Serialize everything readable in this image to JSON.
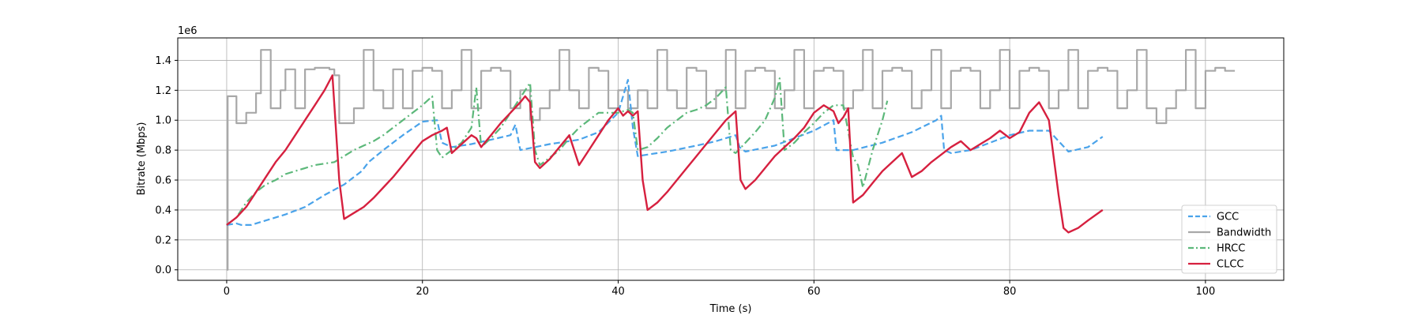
{
  "chart_data": {
    "type": "line",
    "title": "",
    "xlabel": "Time (s)",
    "ylabel": "Bitrate (Mbps)",
    "y_offset_label": "1e6",
    "xlim": [
      -5,
      108
    ],
    "ylim": [
      -0.07,
      1.55
    ],
    "xticks": [
      0,
      20,
      40,
      60,
      80,
      100
    ],
    "yticks": [
      0.0,
      0.2,
      0.4,
      0.6,
      0.8,
      1.0,
      1.2,
      1.4
    ],
    "ytick_labels": [
      "0.0",
      "0.2",
      "0.4",
      "0.6",
      "0.8",
      "1.0",
      "1.2",
      "1.4"
    ],
    "grid": true,
    "legend_position": "lower-right",
    "series": [
      {
        "name": "GCC",
        "color": "#4aa3ea",
        "style": "dashed",
        "x": [
          0,
          1,
          1.5,
          2.5,
          4,
          6,
          8,
          10,
          12,
          13,
          13.8,
          14.5,
          16,
          18,
          20,
          21.5,
          22,
          23,
          25,
          27,
          29,
          29.5,
          30,
          33,
          36,
          38,
          40,
          41,
          41.5,
          42,
          45,
          48,
          50,
          52,
          52.4,
          53,
          56,
          58,
          60,
          62,
          62.3,
          64,
          67,
          70,
          72.5,
          73,
          73.3,
          74,
          76,
          78,
          80,
          82,
          84,
          86,
          88,
          89.5
        ],
        "values": [
          0.3,
          0.31,
          0.3,
          0.3,
          0.33,
          0.37,
          0.42,
          0.5,
          0.57,
          0.62,
          0.66,
          0.72,
          0.8,
          0.9,
          0.99,
          1.0,
          0.85,
          0.82,
          0.84,
          0.87,
          0.9,
          0.97,
          0.8,
          0.84,
          0.87,
          0.92,
          1.05,
          1.27,
          0.95,
          0.76,
          0.79,
          0.83,
          0.86,
          0.9,
          0.82,
          0.79,
          0.83,
          0.88,
          0.93,
          1.0,
          0.8,
          0.8,
          0.85,
          0.92,
          1.0,
          1.03,
          0.8,
          0.78,
          0.8,
          0.85,
          0.9,
          0.93,
          0.93,
          0.79,
          0.82,
          0.89
        ]
      },
      {
        "name": "Bandwidth",
        "color": "#a8a8a8",
        "style": "step",
        "x": [
          0,
          0.1,
          1,
          2,
          3,
          3.5,
          4.5,
          5.5,
          6,
          7,
          8,
          9,
          10.5,
          11,
          11.5,
          13,
          14,
          15,
          16,
          17,
          18,
          19,
          20,
          21,
          22,
          23,
          24,
          25,
          26,
          27,
          28,
          29,
          30,
          31,
          32,
          33,
          34,
          35,
          36,
          37,
          38,
          39,
          40,
          41,
          42,
          43,
          44,
          45,
          46,
          47,
          48,
          49,
          50,
          51,
          52,
          53,
          54,
          55,
          56,
          57,
          58,
          59,
          60,
          61,
          62,
          63,
          64,
          65,
          66,
          67,
          68,
          69,
          70,
          71,
          72,
          73,
          74,
          75,
          76,
          77,
          78,
          79,
          80,
          81,
          82,
          83,
          84,
          85,
          86,
          87,
          88,
          89,
          90,
          91,
          92,
          93,
          94,
          95,
          96,
          97,
          98,
          99,
          100,
          101,
          102,
          103
        ],
        "values": [
          0.0,
          1.16,
          0.98,
          1.05,
          1.18,
          1.47,
          1.08,
          1.2,
          1.34,
          1.08,
          1.34,
          1.35,
          1.34,
          1.3,
          0.98,
          1.08,
          1.47,
          1.2,
          1.08,
          1.34,
          1.08,
          1.33,
          1.35,
          1.33,
          1.08,
          1.2,
          1.47,
          1.08,
          1.33,
          1.35,
          1.33,
          1.08,
          1.2,
          1.0,
          1.08,
          1.2,
          1.47,
          1.2,
          1.08,
          1.35,
          1.33,
          1.08,
          1.2,
          1.08,
          1.2,
          1.08,
          1.47,
          1.2,
          1.08,
          1.35,
          1.33,
          1.08,
          1.2,
          1.47,
          1.08,
          1.33,
          1.35,
          1.33,
          1.08,
          1.2,
          1.47,
          1.08,
          1.33,
          1.35,
          1.33,
          1.08,
          1.2,
          1.47,
          1.08,
          1.33,
          1.35,
          1.33,
          1.08,
          1.2,
          1.47,
          1.08,
          1.33,
          1.35,
          1.33,
          1.08,
          1.2,
          1.47,
          1.08,
          1.33,
          1.35,
          1.33,
          1.08,
          1.2,
          1.47,
          1.08,
          1.33,
          1.35,
          1.33,
          1.08,
          1.2,
          1.47,
          1.08,
          0.98,
          1.08,
          1.2,
          1.47,
          1.08,
          1.33,
          1.35,
          1.33,
          1.33
        ]
      },
      {
        "name": "HRCC",
        "color": "#5cb87a",
        "style": "dashdot",
        "x": [
          0,
          1,
          2,
          3,
          4,
          5,
          6,
          7,
          8,
          9,
          10,
          11,
          12,
          13,
          14,
          15,
          16,
          17,
          18,
          19,
          20,
          21,
          21.5,
          22,
          23,
          24,
          25,
          25.5,
          26,
          27,
          28,
          29,
          30,
          31,
          31.5,
          32,
          33,
          34,
          35,
          36,
          37,
          38,
          39,
          40,
          41,
          41.5,
          42,
          43,
          44,
          45,
          46,
          47,
          48,
          49,
          50,
          51,
          51.5,
          52,
          53,
          54,
          55,
          56,
          56.5,
          57,
          58,
          59,
          60,
          61,
          62,
          63,
          64,
          64.5,
          65,
          66,
          67,
          67.5
        ],
        "values": [
          0.3,
          0.35,
          0.45,
          0.52,
          0.57,
          0.6,
          0.64,
          0.66,
          0.68,
          0.7,
          0.71,
          0.72,
          0.76,
          0.8,
          0.83,
          0.86,
          0.9,
          0.95,
          1.0,
          1.05,
          1.1,
          1.16,
          0.8,
          0.75,
          0.8,
          0.85,
          0.95,
          1.22,
          0.82,
          0.88,
          0.95,
          1.05,
          1.15,
          1.25,
          0.8,
          0.7,
          0.75,
          0.8,
          0.88,
          0.95,
          1.0,
          1.05,
          1.05,
          1.05,
          1.07,
          1.05,
          0.8,
          0.82,
          0.88,
          0.95,
          1.0,
          1.05,
          1.07,
          1.1,
          1.15,
          1.22,
          0.8,
          0.78,
          0.85,
          0.92,
          1.0,
          1.15,
          1.28,
          0.8,
          0.85,
          0.92,
          0.98,
          1.05,
          1.1,
          1.1,
          0.75,
          0.7,
          0.55,
          0.8,
          1.0,
          1.13
        ]
      },
      {
        "name": "CLCC",
        "color": "#d6203f",
        "style": "solid",
        "x": [
          0,
          1,
          2,
          3,
          4,
          5,
          6,
          7,
          8,
          9,
          10,
          10.8,
          11.5,
          12,
          13,
          14,
          15,
          16,
          17,
          18,
          19,
          20,
          21,
          22,
          22.5,
          23,
          24,
          25,
          25.5,
          26,
          27,
          28,
          29,
          30,
          30.5,
          31,
          31.5,
          32,
          33,
          34,
          35,
          36,
          37,
          38,
          39,
          40,
          40.5,
          41,
          41.5,
          42,
          42.5,
          43,
          44,
          45,
          46,
          47,
          48,
          49,
          50,
          51,
          52,
          52.5,
          53,
          54,
          55,
          56,
          57,
          58,
          59,
          60,
          61,
          62,
          62.5,
          63,
          63.5,
          64,
          65,
          66,
          67,
          68,
          69,
          70,
          71,
          72,
          73,
          74,
          75,
          76,
          77,
          78,
          79,
          80,
          81,
          82,
          83,
          84,
          85,
          85.5,
          86,
          87,
          88,
          89.5
        ],
        "values": [
          0.3,
          0.35,
          0.42,
          0.52,
          0.62,
          0.72,
          0.8,
          0.9,
          1.0,
          1.1,
          1.2,
          1.3,
          0.6,
          0.34,
          0.38,
          0.42,
          0.48,
          0.55,
          0.62,
          0.7,
          0.78,
          0.86,
          0.9,
          0.93,
          0.95,
          0.78,
          0.84,
          0.9,
          0.88,
          0.82,
          0.9,
          0.98,
          1.05,
          1.12,
          1.16,
          1.12,
          0.72,
          0.68,
          0.74,
          0.82,
          0.9,
          0.7,
          0.8,
          0.9,
          1.0,
          1.08,
          1.03,
          1.06,
          1.03,
          1.06,
          0.6,
          0.4,
          0.45,
          0.52,
          0.6,
          0.68,
          0.76,
          0.84,
          0.92,
          1.0,
          1.06,
          0.6,
          0.54,
          0.6,
          0.68,
          0.76,
          0.82,
          0.88,
          0.95,
          1.05,
          1.1,
          1.06,
          0.98,
          1.02,
          1.08,
          0.45,
          0.5,
          0.58,
          0.66,
          0.72,
          0.78,
          0.62,
          0.66,
          0.72,
          0.77,
          0.82,
          0.86,
          0.8,
          0.84,
          0.88,
          0.93,
          0.88,
          0.92,
          1.05,
          1.12,
          1.0,
          0.5,
          0.28,
          0.25,
          0.28,
          0.33,
          0.4
        ]
      }
    ]
  }
}
